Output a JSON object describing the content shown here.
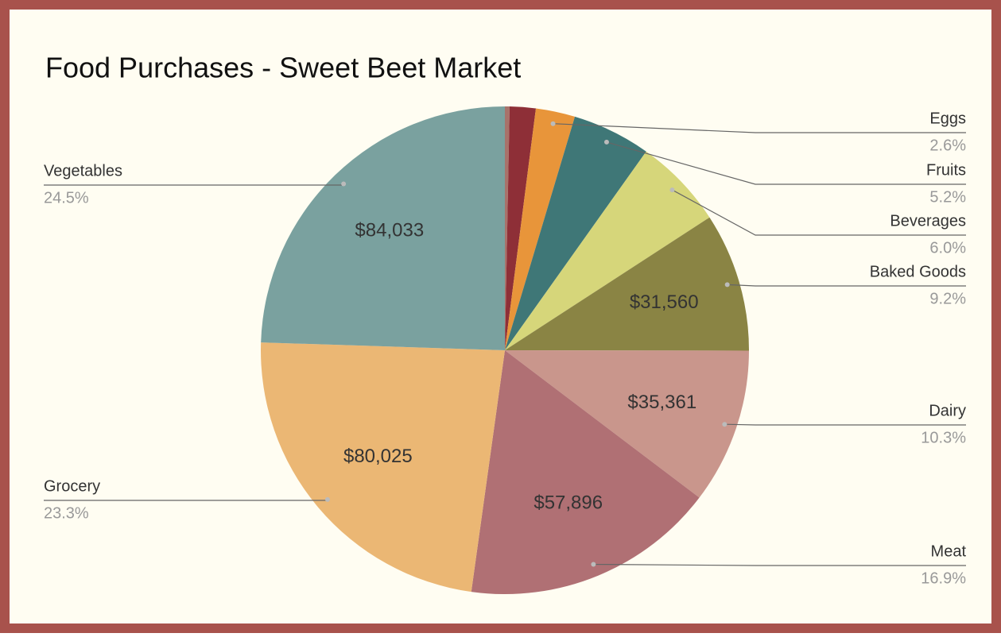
{
  "chart_data": {
    "type": "pie",
    "title": "Food Purchases - Sweet Beet Market",
    "categories": [
      null,
      null,
      "Eggs",
      "Fruits",
      "Beverages",
      "Baked Goods",
      "Dairy",
      "Meat",
      "Grocery",
      "Vegetables"
    ],
    "values": [
      1064,
      5900,
      8923,
      17846,
      20592,
      31560,
      35361,
      57896,
      80025,
      84033
    ],
    "value_labels": [
      null,
      null,
      null,
      null,
      null,
      "$31,560",
      "$35,361",
      "$57,896",
      "$80,025",
      "$84,033"
    ],
    "percent_labels": [
      null,
      null,
      "2.6%",
      "5.2%",
      "6.0%",
      "9.2%",
      "10.3%",
      "16.9%",
      "23.3%",
      "24.5%"
    ],
    "colors": [
      "#a8726a",
      "#8e2f37",
      "#e8953a",
      "#3f7777",
      "#d6d67a",
      "#8a8444",
      "#c9968c",
      "#b07074",
      "#ebb774",
      "#7aa19f"
    ]
  }
}
